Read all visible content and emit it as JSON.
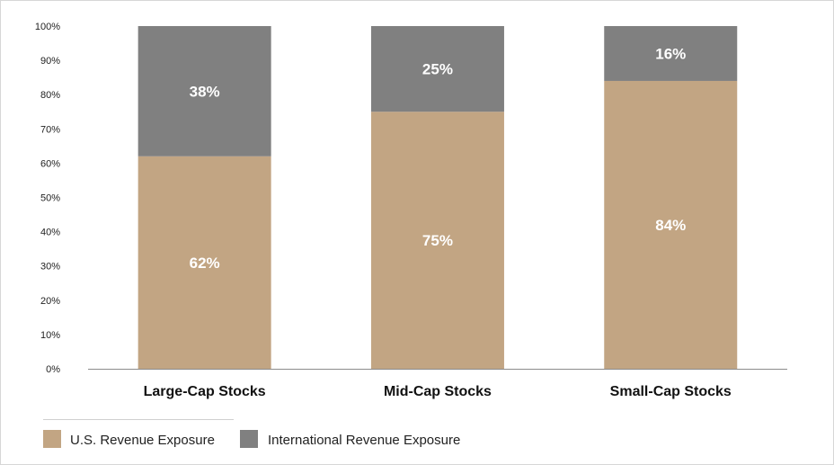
{
  "chart_data": {
    "type": "bar",
    "stacked": true,
    "categories": [
      "Large-Cap Stocks",
      "Mid-Cap Stocks",
      "Small-Cap Stocks"
    ],
    "series": [
      {
        "name": "U.S. Revenue Exposure",
        "values": [
          62,
          75,
          84
        ],
        "labels": [
          "62%",
          "75%",
          "84%"
        ],
        "color": "#c2a583"
      },
      {
        "name": "International Revenue Exposure",
        "values": [
          38,
          25,
          16
        ],
        "labels": [
          "38%",
          "25%",
          "16%"
        ],
        "color": "#808080"
      }
    ],
    "y_ticks": [
      "0%",
      "10%",
      "20%",
      "30%",
      "40%",
      "50%",
      "60%",
      "70%",
      "80%",
      "90%",
      "100%"
    ],
    "ylim": [
      0,
      100
    ],
    "grid": false,
    "legend_position": "bottom-left"
  }
}
